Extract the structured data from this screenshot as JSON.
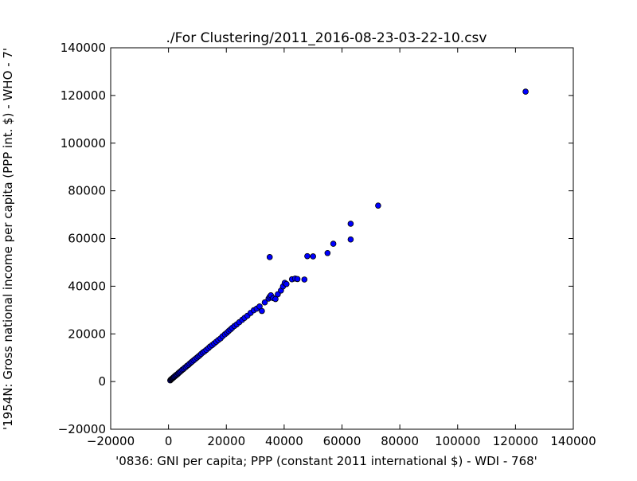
{
  "chart_data": {
    "type": "scatter",
    "title": "./For Clustering/2011_2016-08-23-03-22-10.csv",
    "xlabel": "'0836: GNI per capita; PPP  (constant 2011 international $) - WDI - 768'",
    "ylabel": "'1954N: Gross national income per capita (PPP int. $) - WHO - 7'",
    "xlim": [
      -20000,
      140000
    ],
    "ylim": [
      -20000,
      140000
    ],
    "xticks": [
      "−20000",
      "0",
      "20000",
      "40000",
      "60000",
      "80000",
      "100000",
      "120000",
      "140000"
    ],
    "yticks": [
      "−20000",
      "0",
      "20000",
      "40000",
      "60000",
      "80000",
      "100000",
      "120000",
      "140000"
    ],
    "grid": false,
    "marker_color": "#0000ff",
    "marker_edge": "#000000",
    "series": [
      {
        "x": [
          600,
          800,
          1000,
          1200,
          1400,
          1600,
          1800,
          2000,
          2200,
          2500,
          2700,
          3000,
          3300,
          3500,
          3800,
          4100,
          4500,
          4800,
          5200,
          5600,
          6000,
          6400,
          6900,
          7300,
          7800,
          8200,
          8700,
          9200,
          9800,
          10300,
          10800,
          11300,
          11900,
          12500,
          13100,
          13800,
          14400,
          15100,
          15800,
          16500,
          17200,
          18000,
          18700,
          19500,
          20200,
          20800,
          21400,
          22000,
          22800,
          23600,
          24500,
          25500,
          26300,
          27300,
          28400,
          29500,
          30500,
          31500,
          32300,
          33300,
          34600,
          35000,
          35400,
          36200,
          37000,
          37800,
          38900,
          39600,
          40200,
          40800,
          42700,
          43800,
          44600,
          47000,
          35000,
          48000,
          50000,
          55000,
          57000,
          63000,
          63000,
          72500,
          123500
        ],
        "y": [
          500,
          800,
          1000,
          1200,
          1400,
          1600,
          1800,
          2000,
          2300,
          2500,
          2800,
          3000,
          3300,
          3600,
          3900,
          4200,
          4600,
          5000,
          5300,
          5800,
          6100,
          6600,
          7000,
          7500,
          8000,
          8400,
          8900,
          9400,
          10000,
          10500,
          11000,
          11600,
          12200,
          12700,
          13300,
          14000,
          14700,
          15300,
          16000,
          16700,
          17400,
          18100,
          19000,
          19800,
          20500,
          21200,
          21800,
          22500,
          23300,
          24000,
          24900,
          25900,
          26700,
          27600,
          28800,
          29900,
          30600,
          31500,
          29600,
          33200,
          34800,
          35600,
          36200,
          35000,
          34600,
          36600,
          38200,
          39900,
          41400,
          40900,
          42900,
          43200,
          43000,
          42800,
          52200,
          52600,
          52500,
          53900,
          57800,
          66200,
          59600,
          73800,
          121600
        ]
      }
    ]
  }
}
